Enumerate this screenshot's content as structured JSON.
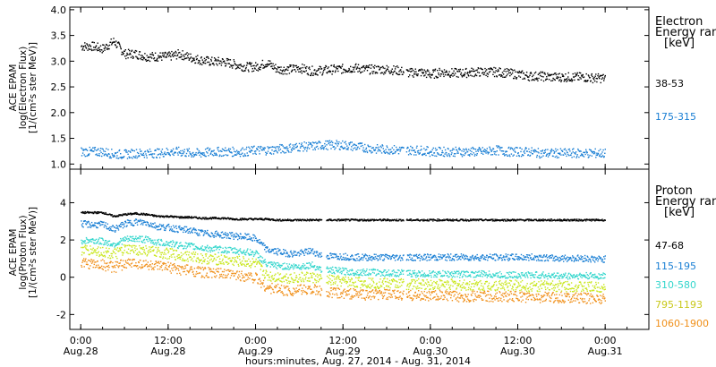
{
  "chart_data": [
    {
      "type": "scatter",
      "panel": "electron",
      "ylabel": [
        "ACE EPAM",
        "log(Electron Flux)",
        "[1/(cm²s ster MeV)]"
      ],
      "ylim": [
        0.9,
        4.05
      ],
      "yticks": [
        "1.0",
        "1.5",
        "2.0",
        "2.5",
        "3.0",
        "3.5",
        "4.0"
      ],
      "ytick_values": [
        1.0,
        1.5,
        2.0,
        2.5,
        3.0,
        3.5,
        4.0
      ],
      "legend_title": [
        "Electron",
        "Energy ran",
        "[keV]"
      ],
      "series": [
        {
          "name": "38-53",
          "color": "#000000",
          "x": [
            0,
            3,
            6,
            9,
            12,
            15,
            18,
            21,
            24,
            27,
            30,
            33,
            36,
            39,
            42,
            45,
            48,
            51,
            54,
            57,
            60,
            63,
            66,
            69,
            72,
            75,
            78,
            81,
            84,
            87,
            90,
            93,
            96,
            99,
            102,
            105,
            108,
            111,
            114,
            117,
            120,
            123,
            126,
            129,
            132,
            135,
            138,
            141,
            144
          ],
          "values": [
            3.3,
            3.3,
            3.25,
            3.4,
            3.15,
            3.15,
            3.1,
            3.1,
            3.1,
            3.15,
            3.08,
            3.03,
            3.0,
            3.0,
            2.95,
            2.9,
            2.9,
            2.98,
            2.85,
            2.85,
            2.88,
            2.82,
            2.83,
            2.85,
            2.86,
            2.88,
            2.85,
            2.85,
            2.85,
            2.83,
            2.78,
            2.8,
            2.75,
            2.8,
            2.78,
            2.78,
            2.8,
            2.8,
            2.8,
            2.78,
            2.75,
            2.72,
            2.72,
            2.7,
            2.7,
            2.7,
            2.7,
            2.68,
            2.68
          ]
        },
        {
          "name": "175-315",
          "color": "#1a7fd4",
          "x": [
            0,
            3,
            6,
            9,
            12,
            15,
            18,
            21,
            24,
            27,
            30,
            33,
            36,
            39,
            42,
            45,
            48,
            51,
            54,
            57,
            60,
            63,
            66,
            69,
            72,
            75,
            78,
            81,
            84,
            87,
            90,
            93,
            96,
            99,
            102,
            105,
            108,
            111,
            114,
            117,
            120,
            123,
            126,
            129,
            132,
            135,
            138,
            141,
            144
          ],
          "values": [
            1.25,
            1.25,
            1.25,
            1.2,
            1.2,
            1.22,
            1.22,
            1.22,
            1.25,
            1.25,
            1.22,
            1.22,
            1.25,
            1.25,
            1.25,
            1.25,
            1.28,
            1.28,
            1.3,
            1.32,
            1.35,
            1.35,
            1.38,
            1.38,
            1.38,
            1.35,
            1.33,
            1.3,
            1.3,
            1.28,
            1.28,
            1.28,
            1.25,
            1.25,
            1.25,
            1.25,
            1.25,
            1.25,
            1.28,
            1.25,
            1.25,
            1.25,
            1.22,
            1.22,
            1.22,
            1.22,
            1.22,
            1.22,
            1.22
          ]
        }
      ]
    },
    {
      "type": "scatter",
      "panel": "proton",
      "ylabel": [
        "ACE EPAM",
        "log(Proton Flux)",
        "[1/(cm²s ster MeV)]"
      ],
      "ylim": [
        -2.8,
        5.8
      ],
      "yticks": [
        "-2",
        "0",
        "2",
        "4"
      ],
      "ytick_values": [
        -2,
        0,
        2,
        4
      ],
      "legend_title": [
        "Proton",
        "Energy ran",
        "[keV]"
      ],
      "series": [
        {
          "name": "47-68",
          "color": "#000000",
          "x": [
            0,
            3,
            6,
            9,
            12,
            15,
            18,
            21,
            24,
            27,
            30,
            33,
            36,
            39,
            42,
            45,
            48,
            51,
            54,
            57,
            60,
            63,
            66,
            69,
            72,
            75,
            78,
            81,
            84,
            87,
            90,
            93,
            96,
            99,
            102,
            105,
            108,
            111,
            114,
            117,
            120,
            123,
            126,
            129,
            132,
            135,
            138,
            141,
            144
          ],
          "values": [
            3.5,
            3.5,
            3.5,
            3.3,
            3.4,
            3.45,
            3.4,
            3.3,
            3.3,
            3.25,
            3.25,
            3.2,
            3.2,
            3.2,
            3.15,
            3.15,
            3.15,
            3.15,
            3.1,
            3.1,
            3.1,
            3.1,
            3.1,
            3.1,
            3.1,
            3.1,
            3.1,
            3.1,
            3.1,
            3.1,
            3.1,
            3.1,
            3.1,
            3.1,
            3.1,
            3.1,
            3.1,
            3.1,
            3.1,
            3.1,
            3.1,
            3.1,
            3.1,
            3.1,
            3.1,
            3.1,
            3.1,
            3.1,
            3.1
          ]
        },
        {
          "name": "115-195",
          "color": "#1a7fd4",
          "x": [
            0,
            3,
            6,
            9,
            12,
            15,
            18,
            21,
            24,
            27,
            30,
            33,
            36,
            39,
            42,
            45,
            48,
            51,
            54,
            57,
            60,
            63,
            66,
            69,
            72,
            75,
            78,
            81,
            84,
            87,
            90,
            93,
            96,
            99,
            102,
            105,
            108,
            111,
            114,
            117,
            120,
            123,
            126,
            129,
            132,
            135,
            138,
            141,
            144
          ],
          "values": [
            2.9,
            2.85,
            2.85,
            2.6,
            2.9,
            3.0,
            2.95,
            2.75,
            2.7,
            2.6,
            2.55,
            2.4,
            2.35,
            2.3,
            2.25,
            2.2,
            2.1,
            1.5,
            1.4,
            1.3,
            1.3,
            1.45,
            1.2,
            1.15,
            1.15,
            1.1,
            1.1,
            1.1,
            1.1,
            1.1,
            1.1,
            1.1,
            1.1,
            1.1,
            1.1,
            1.1,
            1.1,
            1.1,
            1.1,
            1.1,
            1.1,
            1.1,
            1.1,
            1.05,
            1.05,
            1.05,
            1.05,
            1.0,
            1.0
          ]
        },
        {
          "name": "310-580",
          "color": "#33d6cc",
          "x": [
            0,
            3,
            6,
            9,
            12,
            15,
            18,
            21,
            24,
            27,
            30,
            33,
            36,
            39,
            42,
            45,
            48,
            51,
            54,
            57,
            60,
            63,
            66,
            69,
            72,
            75,
            78,
            81,
            84,
            87,
            90,
            93,
            96,
            99,
            102,
            105,
            108,
            111,
            114,
            117,
            120,
            123,
            126,
            129,
            132,
            135,
            138,
            141,
            144
          ],
          "values": [
            2.0,
            2.0,
            1.95,
            1.8,
            2.05,
            2.1,
            2.05,
            1.9,
            1.85,
            1.75,
            1.7,
            1.6,
            1.55,
            1.5,
            1.45,
            1.4,
            1.3,
            0.7,
            0.65,
            0.6,
            0.6,
            0.7,
            0.45,
            0.4,
            0.35,
            0.3,
            0.3,
            0.3,
            0.25,
            0.25,
            0.25,
            0.2,
            0.2,
            0.2,
            0.2,
            0.2,
            0.2,
            0.2,
            0.15,
            0.15,
            0.15,
            0.15,
            0.15,
            0.1,
            0.1,
            0.1,
            0.1,
            0.1,
            0.1
          ]
        },
        {
          "name": "795-1193",
          "color": "#c8e61a",
          "x": [
            0,
            3,
            6,
            9,
            12,
            15,
            18,
            21,
            24,
            27,
            30,
            33,
            36,
            39,
            42,
            45,
            48,
            51,
            54,
            57,
            60,
            63,
            66,
            69,
            72,
            75,
            78,
            81,
            84,
            87,
            90,
            93,
            96,
            99,
            102,
            105,
            108,
            111,
            114,
            117,
            120,
            123,
            126,
            129,
            132,
            135,
            138,
            141,
            144
          ],
          "values": [
            1.5,
            1.45,
            1.4,
            1.25,
            1.5,
            1.5,
            1.45,
            1.35,
            1.3,
            1.2,
            1.15,
            1.05,
            1.0,
            0.95,
            0.9,
            0.85,
            0.75,
            0.1,
            0.05,
            0.0,
            0.0,
            0.05,
            -0.1,
            -0.15,
            -0.2,
            -0.25,
            -0.25,
            -0.3,
            -0.3,
            -0.3,
            -0.35,
            -0.35,
            -0.35,
            -0.35,
            -0.35,
            -0.4,
            -0.4,
            -0.4,
            -0.4,
            -0.4,
            -0.4,
            -0.45,
            -0.45,
            -0.45,
            -0.45,
            -0.45,
            -0.5,
            -0.5,
            -0.5
          ]
        },
        {
          "name": "1060-1900",
          "color": "#f0901a",
          "x": [
            0,
            3,
            6,
            9,
            12,
            15,
            18,
            21,
            24,
            27,
            30,
            33,
            36,
            39,
            42,
            45,
            48,
            51,
            54,
            57,
            60,
            63,
            66,
            69,
            72,
            75,
            78,
            81,
            84,
            87,
            90,
            93,
            96,
            99,
            102,
            105,
            108,
            111,
            114,
            117,
            120,
            123,
            126,
            129,
            132,
            135,
            138,
            141,
            144
          ],
          "values": [
            0.8,
            0.75,
            0.7,
            0.55,
            0.75,
            0.8,
            0.7,
            0.6,
            0.55,
            0.45,
            0.4,
            0.3,
            0.25,
            0.2,
            0.15,
            0.1,
            0.0,
            -0.55,
            -0.6,
            -0.7,
            -0.65,
            -0.6,
            -0.75,
            -0.8,
            -0.85,
            -0.85,
            -0.9,
            -0.9,
            -0.9,
            -0.95,
            -0.95,
            -0.95,
            -0.95,
            -0.95,
            -1.0,
            -1.0,
            -1.0,
            -1.0,
            -1.0,
            -1.0,
            -1.0,
            -1.05,
            -1.05,
            -1.05,
            -1.05,
            -1.05,
            -1.1,
            -1.1,
            -1.1
          ]
        }
      ]
    }
  ],
  "x_axis": {
    "range_hours": [
      -3,
      156
    ],
    "tick_hours": [
      0,
      24,
      48,
      72,
      96,
      120,
      144
    ],
    "tick_times": [
      "0:00",
      "12:00",
      "0:00",
      "12:00",
      "0:00",
      "12:00",
      "0:00"
    ],
    "tick_dates": [
      "Aug.28",
      "Aug.28",
      "Aug.29",
      "Aug.29",
      "Aug.30",
      "Aug.30",
      "Aug.31"
    ],
    "title": "hours:minutes, Aug. 27, 2014 - Aug. 31, 2014"
  }
}
